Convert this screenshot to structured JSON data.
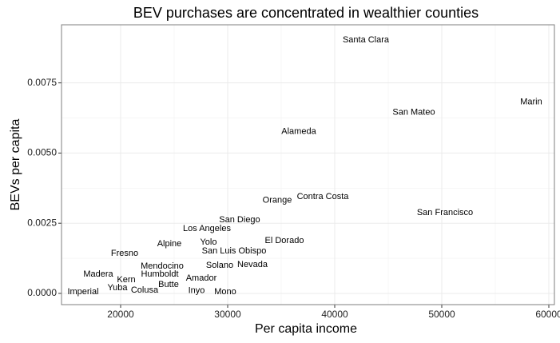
{
  "chart_data": {
    "type": "scatter",
    "title": "BEV purchases are concentrated in wealthier counties",
    "x_label": "Per capita income",
    "y_label": "BEVs per capita",
    "xlim": [
      14478,
      60522
    ],
    "ylim": [
      -0.0004,
      0.00957
    ],
    "xticks": [
      20000,
      30000,
      40000,
      50000,
      60000
    ],
    "yticks": [
      {
        "value": 0,
        "label": "0.0000"
      },
      {
        "value": 0.0025,
        "label": "0.0025"
      },
      {
        "value": 0.005,
        "label": "0.0050"
      },
      {
        "value": 0.0075,
        "label": "0.0075"
      }
    ],
    "grid": true,
    "labels": [
      "Santa Clara",
      "Marin",
      "San Mateo",
      "Alameda",
      "Orange",
      "Contra Costa",
      "San Francisco",
      "San Diego",
      "Los Angeles",
      "El Dorado",
      "Alpine",
      "Yolo",
      "San Luis Obispo",
      "Fresno",
      "Mendocino",
      "Solano",
      "Nevada",
      "Humboldt",
      "Madera",
      "Amador",
      "Kern",
      "Butte",
      "Yuba",
      "Colusa",
      "Imperial",
      "Inyo",
      "Mono"
    ],
    "x": [
      42910,
      58358,
      47388,
      36642,
      34627,
      38881,
      50299,
      31119,
      28060,
      35299,
      24552,
      28209,
      30597,
      20373,
      23881,
      29254,
      32313,
      23657,
      17910,
      27537,
      20522,
      24478,
      19701,
      22239,
      16493,
      27090,
      29776
    ],
    "values": [
      0.00903,
      0.00682,
      0.00645,
      0.00577,
      0.00332,
      0.00344,
      0.00287,
      0.00261,
      0.0023,
      0.00188,
      0.00176,
      0.00182,
      0.00151,
      0.00142,
      0.00097,
      0.00099,
      0.00102,
      0.00068,
      0.00068,
      0.00054,
      0.00048,
      0.00031,
      0.0002,
      0.00011,
      6e-05,
      9e-05,
      6e-05
    ],
    "color": "#000000"
  }
}
